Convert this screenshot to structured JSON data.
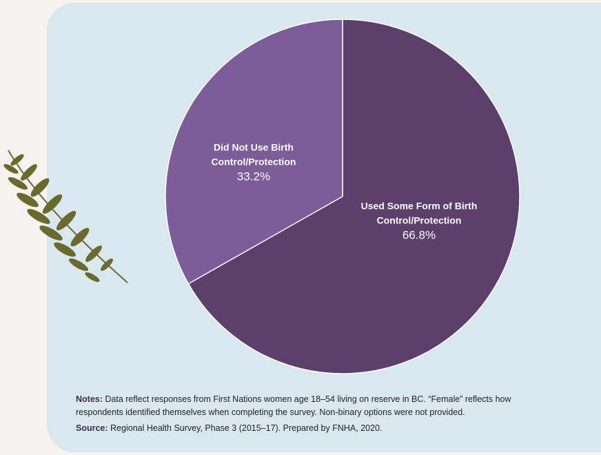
{
  "chart_data": {
    "type": "pie",
    "categories": [
      "Used Some Form of Birth Control/Protection",
      "Did Not Use Birth Control/Protection"
    ],
    "values": [
      66.8,
      33.2
    ],
    "value_labels": [
      "66.8%",
      "33.2%"
    ],
    "colors": [
      "#5c3f6b",
      "#7d5d99"
    ],
    "notes": {
      "label": "Notes:",
      "text": "Data reflect responses from First Nations women age 18–54 living on reserve in BC. “Female” reflects how respondents identified themselves when completing the survey. Non-binary options were not provided."
    },
    "source": {
      "label": "Source:",
      "text": "Regional Health Survey, Phase 3 (2015–17). Prepared by FNHA, 2020."
    }
  }
}
